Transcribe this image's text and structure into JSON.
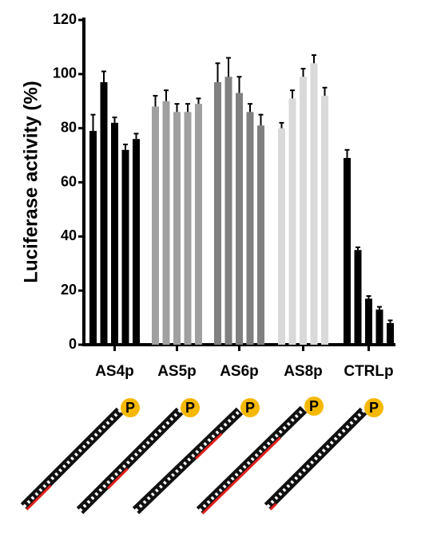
{
  "chart_data": {
    "type": "bar",
    "y_label": "Luciferase activity (%)",
    "ylim": [
      0,
      120
    ],
    "yticks": [
      0,
      20,
      40,
      60,
      80,
      100,
      120
    ],
    "groups": [
      {
        "name": "AS4p",
        "color": "#000000",
        "values": [
          79,
          97,
          82,
          72,
          76
        ],
        "errors": [
          6,
          4,
          2,
          2,
          2
        ]
      },
      {
        "name": "AS5p",
        "color": "#a0a0a0",
        "values": [
          88,
          90,
          86,
          86,
          89
        ],
        "errors": [
          4,
          4,
          3,
          3,
          2
        ]
      },
      {
        "name": "AS6p",
        "color": "#808080",
        "values": [
          97,
          99,
          93,
          86,
          81
        ],
        "errors": [
          7,
          7,
          6,
          3,
          4
        ]
      },
      {
        "name": "AS8p",
        "color": "#d9d9d9",
        "values": [
          80,
          91,
          99,
          104,
          92
        ],
        "errors": [
          2,
          3,
          3,
          3,
          3
        ]
      },
      {
        "name": "CTRLp",
        "color": "#000000",
        "values": [
          69,
          35,
          17,
          13,
          8
        ],
        "errors": [
          3,
          1,
          1,
          1,
          1
        ]
      }
    ]
  },
  "diagram": {
    "phosphate_labels": [
      "P",
      "P",
      "P",
      "P",
      "P"
    ]
  }
}
